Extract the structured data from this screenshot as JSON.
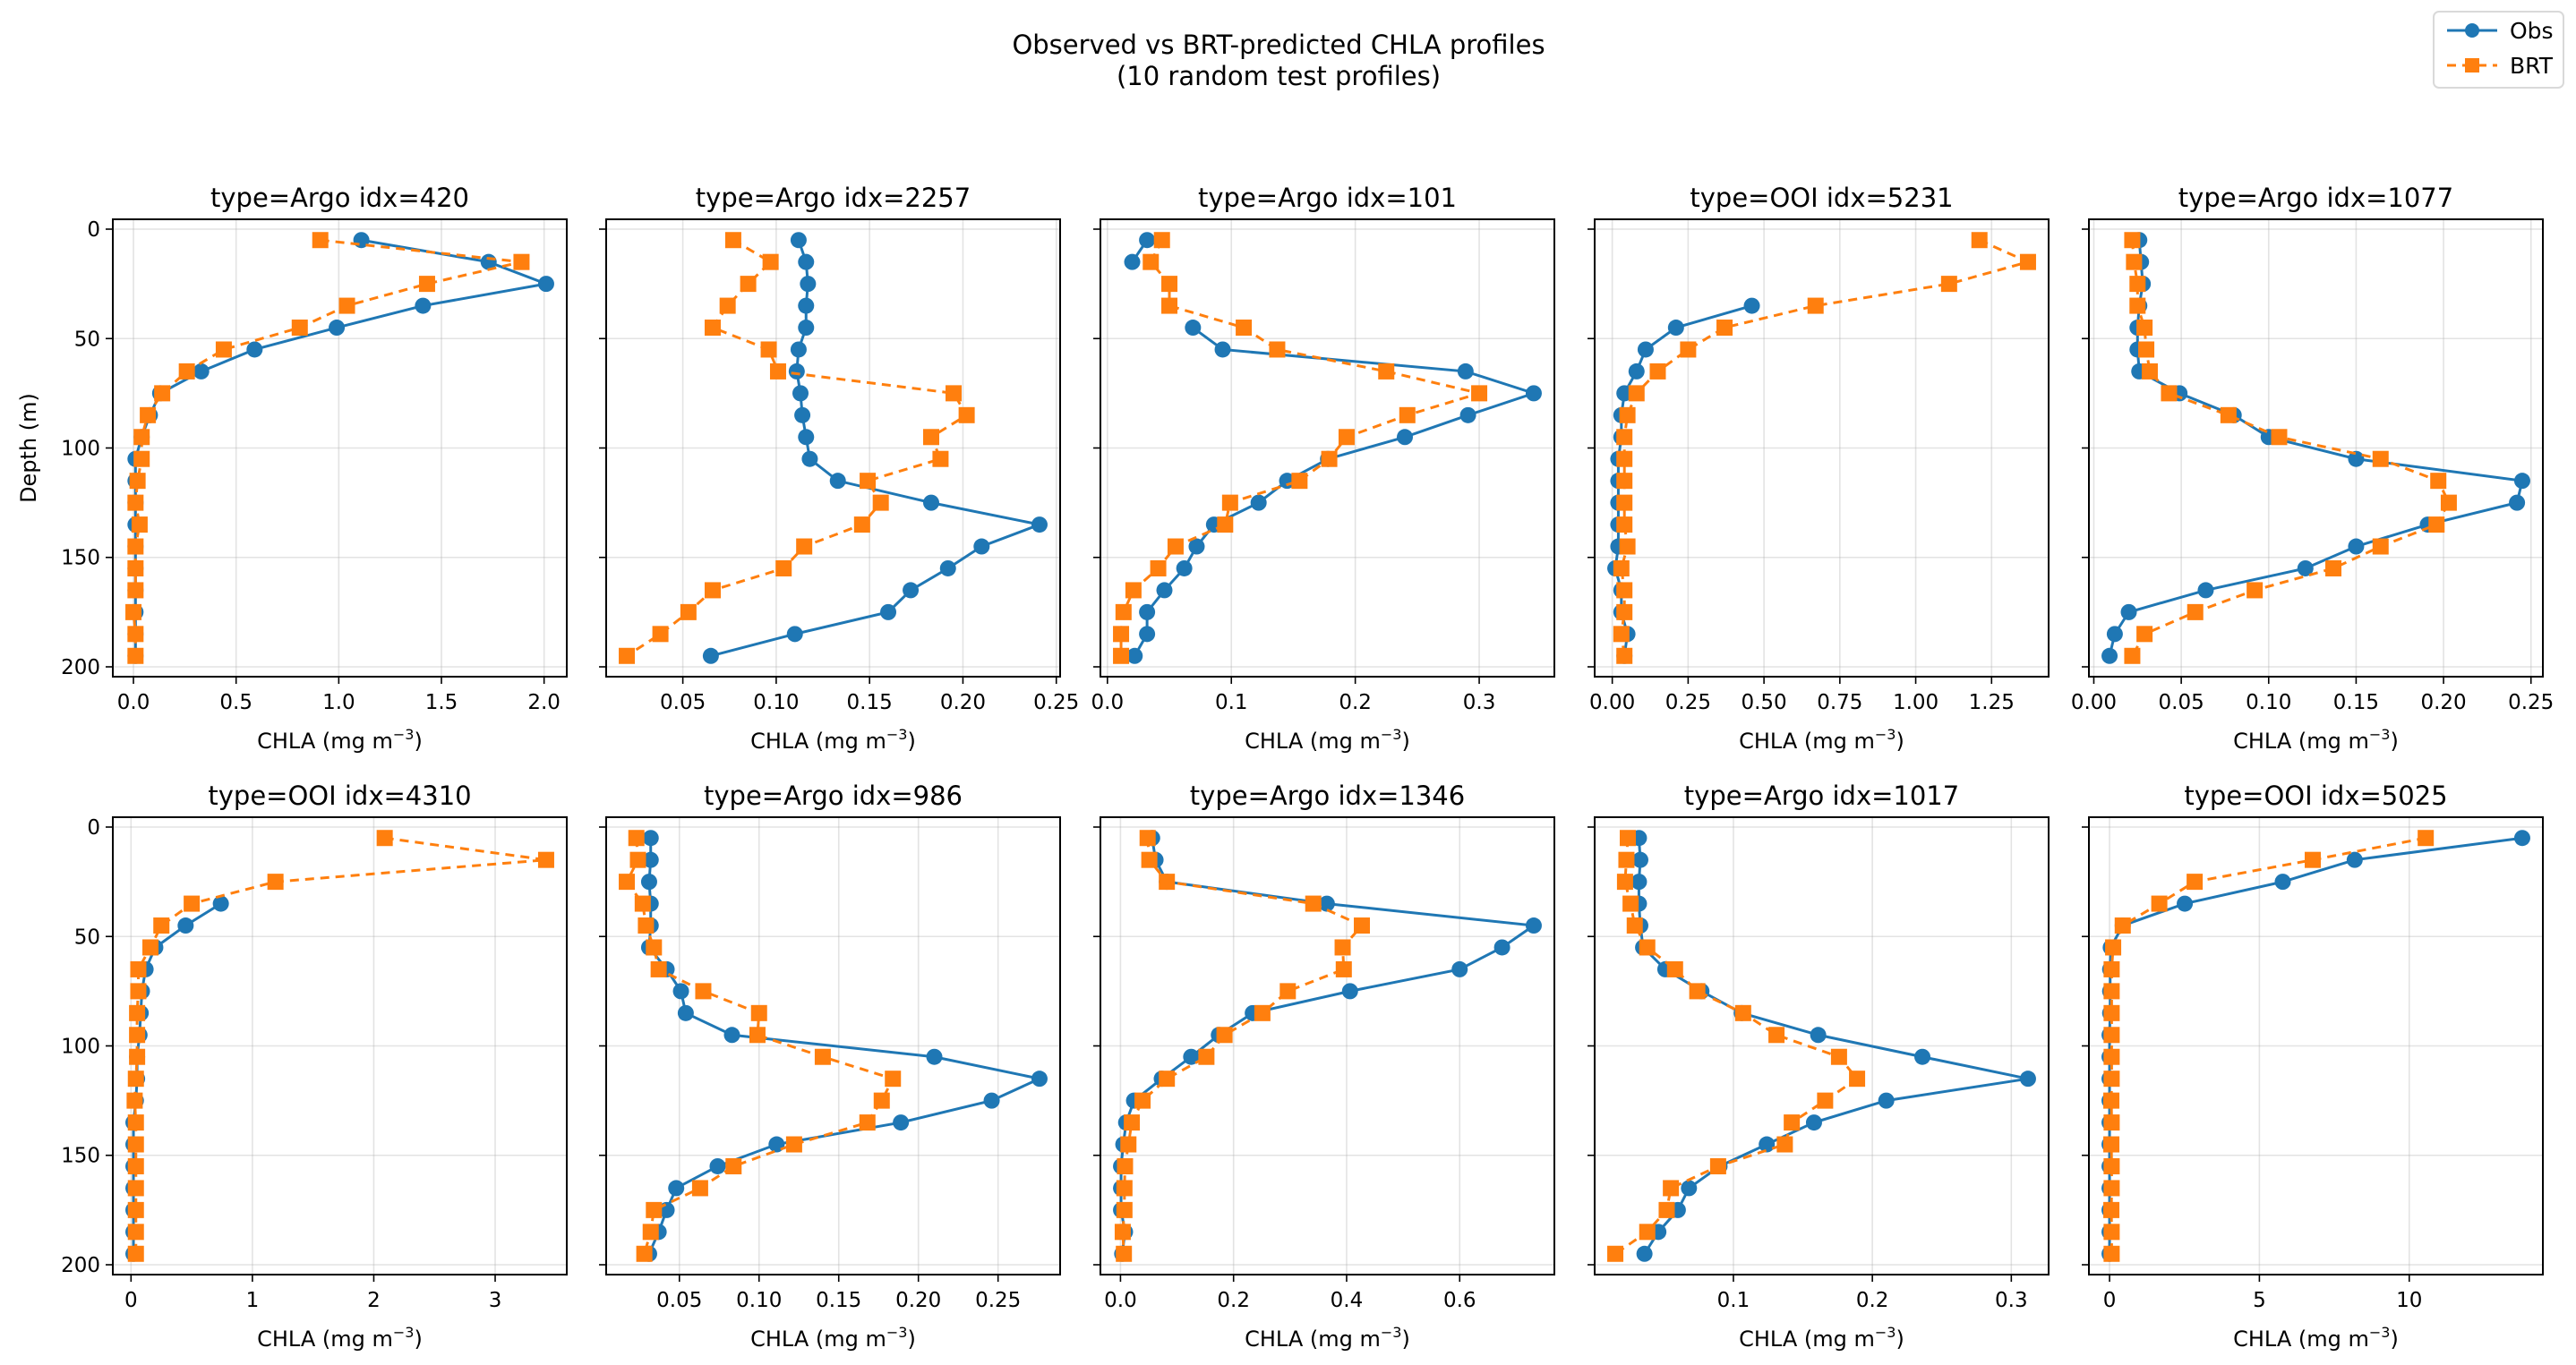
{
  "figure": {
    "title_line1": "Observed vs BRT-predicted CHLA profiles",
    "title_line2": "(10 random test profiles)"
  },
  "legend": {
    "placement": "top-right",
    "items": [
      {
        "label": "Obs",
        "color": "#1f77b4",
        "marker": "circle",
        "linestyle": "solid"
      },
      {
        "label": "BRT",
        "color": "#ff7f0e",
        "marker": "square",
        "linestyle": "dashed"
      }
    ]
  },
  "chart_data": {
    "type": "line",
    "layout": "2x5 subplots, shared inverted depth axis",
    "ylabel": "Depth (m)",
    "xlabel": "CHLA (mg m",
    "xlabel_sup": "−3",
    "xlabel_close": ")",
    "ylim": [
      204.5,
      -4.5
    ],
    "yticks": [
      "0",
      "50",
      "100",
      "150",
      "200"
    ],
    "ytick_values": [
      0,
      50,
      100,
      150,
      200
    ],
    "grid": true,
    "depth": [
      5,
      15,
      25,
      35,
      45,
      55,
      65,
      75,
      85,
      95,
      105,
      115,
      125,
      135,
      145,
      155,
      165,
      175,
      185,
      195
    ],
    "panels": [
      {
        "title": "type=Argo idx=420",
        "xticks": [
          "0.0",
          "0.5",
          "1.0",
          "1.5",
          "2.0"
        ],
        "xtick_values": [
          0,
          0.5,
          1,
          1.5,
          2
        ],
        "obs": [
          1.11,
          1.73,
          2.01,
          1.41,
          0.99,
          0.59,
          0.33,
          0.13,
          0.08,
          0.04,
          0.01,
          0.01,
          0.01,
          0.01,
          0.01,
          0.01,
          0.01,
          0.01,
          0.01,
          0.01
        ],
        "brt": [
          0.91,
          1.89,
          1.43,
          1.04,
          0.81,
          0.44,
          0.26,
          0.14,
          0.07,
          0.04,
          0.04,
          0.02,
          0.01,
          0.03,
          0.01,
          0.01,
          0.01,
          0.0,
          0.01,
          0.01
        ]
      },
      {
        "title": "type=Argo idx=2257",
        "xticks": [
          "0.05",
          "0.10",
          "0.15",
          "0.20",
          "0.25"
        ],
        "xtick_values": [
          0.05,
          0.1,
          0.15,
          0.2,
          0.25
        ],
        "obs": [
          0.112,
          0.116,
          0.117,
          0.116,
          0.116,
          0.112,
          0.111,
          0.113,
          0.114,
          0.116,
          0.118,
          0.133,
          0.183,
          0.241,
          0.21,
          0.192,
          0.172,
          0.16,
          0.11,
          0.065
        ],
        "brt": [
          0.077,
          0.097,
          0.085,
          0.074,
          0.066,
          0.096,
          0.101,
          0.195,
          0.202,
          0.183,
          0.188,
          0.149,
          0.156,
          0.146,
          0.115,
          0.104,
          0.066,
          0.053,
          0.038,
          0.02
        ]
      },
      {
        "title": "type=Argo idx=101",
        "xticks": [
          "0.0",
          "0.1",
          "0.2",
          "0.3"
        ],
        "xtick_values": [
          0,
          0.1,
          0.2,
          0.3
        ],
        "obs": [
          0.032,
          0.02,
          null,
          null,
          0.069,
          0.093,
          0.289,
          0.344,
          0.291,
          0.24,
          0.178,
          0.145,
          0.122,
          0.086,
          0.072,
          0.062,
          0.046,
          0.032,
          0.032,
          0.022
        ],
        "brt": [
          0.044,
          0.035,
          0.05,
          0.05,
          0.11,
          0.137,
          0.225,
          0.3,
          0.242,
          0.193,
          0.179,
          0.155,
          0.099,
          0.095,
          0.055,
          0.041,
          0.021,
          0.013,
          0.011,
          0.011
        ]
      },
      {
        "title": "type=OOI idx=5231",
        "xticks": [
          "0.00",
          "0.25",
          "0.50",
          "0.75",
          "1.00",
          "1.25"
        ],
        "xtick_values": [
          0,
          0.25,
          0.5,
          0.75,
          1,
          1.25
        ],
        "obs": [
          null,
          null,
          null,
          0.46,
          0.21,
          0.11,
          0.08,
          0.04,
          0.03,
          0.03,
          0.02,
          0.02,
          0.02,
          0.02,
          0.02,
          0.01,
          0.03,
          0.03,
          0.05,
          0.04
        ],
        "brt": [
          1.21,
          1.37,
          1.11,
          0.67,
          0.37,
          0.25,
          0.15,
          0.08,
          0.05,
          0.04,
          0.04,
          0.04,
          0.04,
          0.04,
          0.05,
          0.03,
          0.04,
          0.04,
          0.03,
          0.04
        ]
      },
      {
        "title": "type=Argo idx=1077",
        "xticks": [
          "0.00",
          "0.05",
          "0.10",
          "0.15",
          "0.20",
          "0.25"
        ],
        "xtick_values": [
          0,
          0.05,
          0.1,
          0.15,
          0.2,
          0.25
        ],
        "obs": [
          0.026,
          0.027,
          0.028,
          0.026,
          0.025,
          0.025,
          0.026,
          0.049,
          0.08,
          0.1,
          0.15,
          0.245,
          0.242,
          0.191,
          0.15,
          0.121,
          0.064,
          0.02,
          0.012,
          0.009
        ],
        "brt": [
          0.022,
          0.023,
          0.025,
          0.025,
          0.029,
          0.03,
          0.032,
          0.043,
          0.077,
          0.106,
          0.164,
          0.197,
          0.203,
          0.196,
          0.164,
          0.137,
          0.092,
          0.058,
          0.029,
          0.022
        ]
      },
      {
        "title": "type=OOI idx=4310",
        "xticks": [
          "0",
          "1",
          "2",
          "3"
        ],
        "xtick_values": [
          0,
          1,
          2,
          3
        ],
        "obs": [
          null,
          null,
          null,
          0.74,
          0.45,
          0.2,
          0.12,
          0.09,
          0.08,
          0.07,
          0.05,
          0.05,
          0.04,
          0.02,
          0.02,
          0.02,
          0.02,
          0.02,
          0.02,
          0.02
        ],
        "brt": [
          2.09,
          3.42,
          1.19,
          0.5,
          0.25,
          0.16,
          0.06,
          0.06,
          0.05,
          0.05,
          0.05,
          0.04,
          0.03,
          0.04,
          0.04,
          0.04,
          0.04,
          0.04,
          0.04,
          0.04
        ]
      },
      {
        "title": "type=Argo idx=986",
        "xticks": [
          "0.05",
          "0.10",
          "0.15",
          "0.20",
          "0.25"
        ],
        "xtick_values": [
          0.05,
          0.1,
          0.15,
          0.2,
          0.25
        ],
        "obs": [
          0.032,
          0.032,
          0.031,
          0.032,
          0.032,
          0.031,
          0.042,
          0.051,
          0.054,
          0.083,
          0.21,
          0.276,
          0.246,
          0.189,
          0.111,
          0.074,
          0.048,
          0.042,
          0.037,
          0.031
        ],
        "brt": [
          0.023,
          0.024,
          0.017,
          0.027,
          0.029,
          0.034,
          0.037,
          0.065,
          0.1,
          0.099,
          0.14,
          0.184,
          0.177,
          0.168,
          0.122,
          0.084,
          0.063,
          0.034,
          0.032,
          0.028
        ]
      },
      {
        "title": "type=Argo idx=1346",
        "xticks": [
          "0.0",
          "0.2",
          "0.4",
          "0.6"
        ],
        "xtick_values": [
          0,
          0.2,
          0.4,
          0.6
        ],
        "obs": [
          0.056,
          0.062,
          0.082,
          0.365,
          0.731,
          0.675,
          0.6,
          0.406,
          0.234,
          0.174,
          0.125,
          0.073,
          0.024,
          0.01,
          0.005,
          0.001,
          0.001,
          0.001,
          0.008,
          0.003
        ],
        "brt": [
          0.048,
          0.051,
          0.082,
          0.341,
          0.427,
          0.393,
          0.395,
          0.296,
          0.251,
          0.184,
          0.152,
          0.082,
          0.039,
          0.02,
          0.014,
          0.008,
          0.007,
          0.007,
          0.004,
          0.006
        ]
      },
      {
        "title": "type=Argo idx=1017",
        "xticks": [
          "0.1",
          "0.2",
          "0.3"
        ],
        "xtick_values": [
          0.1,
          0.2,
          0.3
        ],
        "obs": [
          0.032,
          0.033,
          0.032,
          0.032,
          0.033,
          0.035,
          0.051,
          0.077,
          0.106,
          0.161,
          0.236,
          0.312,
          0.21,
          0.158,
          0.124,
          0.09,
          0.068,
          0.06,
          0.046,
          0.036
        ],
        "brt": [
          0.024,
          0.023,
          0.022,
          0.026,
          0.029,
          0.038,
          0.058,
          0.074,
          0.107,
          0.131,
          0.176,
          0.189,
          0.166,
          0.142,
          0.137,
          0.089,
          0.055,
          0.052,
          0.038,
          0.015
        ]
      },
      {
        "title": "type=OOI idx=5025",
        "xticks": [
          "0",
          "5",
          "10"
        ],
        "xtick_values": [
          0,
          5,
          10
        ],
        "obs": [
          13.77,
          8.18,
          5.78,
          2.51,
          0.44,
          0.04,
          0.02,
          0.02,
          0.02,
          0.0,
          0.0,
          0.0,
          0.0,
          0.0,
          0.0,
          0.0,
          0.0,
          0.0,
          0.0,
          0.0
        ],
        "brt": [
          10.55,
          6.78,
          2.84,
          1.66,
          0.44,
          0.12,
          0.07,
          0.07,
          0.07,
          0.07,
          0.07,
          0.07,
          0.06,
          0.07,
          0.06,
          0.07,
          0.07,
          0.06,
          0.07,
          0.07
        ]
      }
    ]
  }
}
